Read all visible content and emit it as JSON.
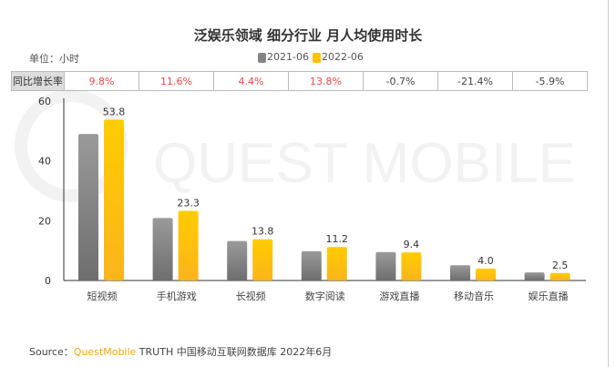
{
  "title": "泛娱乐领域 细分行业 月人均使用时长",
  "unit": "单位：小时",
  "yoy_label": "同比增长率",
  "yoy": [
    "9.8%",
    "11.6%",
    "4.4%",
    "13.8%",
    "-0.7%",
    "-21.4%",
    "-5.9%"
  ],
  "colors": {
    "positive": "#f04848",
    "negative": "#444444",
    "s2021": "#858585",
    "s2022": "#ffc000"
  },
  "footer": {
    "prefix": "Source：",
    "brand": "QuestMobile",
    "rest": " TRUTH 中国移动互联网数据库 2022年6月"
  },
  "watermark": "QUEST MOBILE",
  "chart_data": {
    "type": "bar",
    "title": "泛娱乐领域 细分行业 月人均使用时长",
    "categories": [
      "短视频",
      "手机游戏",
      "长视频",
      "数字阅读",
      "游戏直播",
      "移动音乐",
      "娱乐直播"
    ],
    "series": [
      {
        "name": "2021-06",
        "values": [
          49.0,
          20.9,
          13.2,
          9.8,
          9.5,
          5.1,
          2.7
        ]
      },
      {
        "name": "2022-06",
        "values": [
          53.8,
          23.3,
          13.8,
          11.2,
          9.4,
          4.0,
          2.5
        ]
      }
    ],
    "data_labels": [
      "53.8",
      "23.3",
      "13.8",
      "11.2",
      "9.4",
      "4.0",
      "2.5"
    ],
    "yticks": [
      "0",
      "20",
      "40",
      "60"
    ],
    "ylim": [
      0,
      60
    ],
    "legend": "top-center",
    "grid": false
  }
}
